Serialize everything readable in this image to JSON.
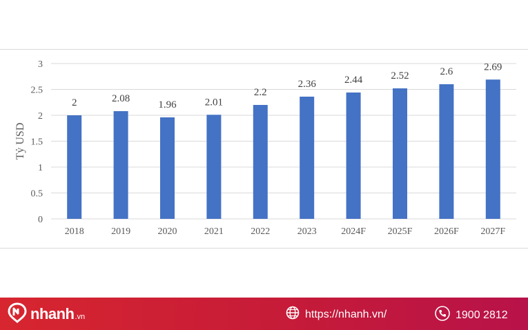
{
  "chart_data": {
    "type": "bar",
    "categories": [
      "2018",
      "2019",
      "2020",
      "2021",
      "2022",
      "2023",
      "2024F",
      "2025F",
      "2026F",
      "2027F"
    ],
    "values": [
      2,
      2.08,
      1.96,
      2.01,
      2.2,
      2.36,
      2.44,
      2.52,
      2.6,
      2.69
    ],
    "data_labels": [
      "2",
      "2.08",
      "1.96",
      "2.01",
      "2.2",
      "2.36",
      "2.44",
      "2.52",
      "2.6",
      "2.69"
    ],
    "ylabel": "Tỷ USD",
    "ylim": [
      0,
      3
    ],
    "yticks": [
      "0",
      "0.5",
      "1",
      "1.5",
      "2",
      "2.5",
      "3"
    ],
    "grid": true,
    "bar_color": "#4472c4"
  },
  "footer": {
    "brand_name": "nhanh",
    "brand_tld": ".vn",
    "website": "https://nhanh.vn/",
    "phone": "1900 2812",
    "icons": {
      "brand": "nhanh-logo-icon",
      "web": "globe-icon",
      "phone": "phone-icon"
    }
  }
}
